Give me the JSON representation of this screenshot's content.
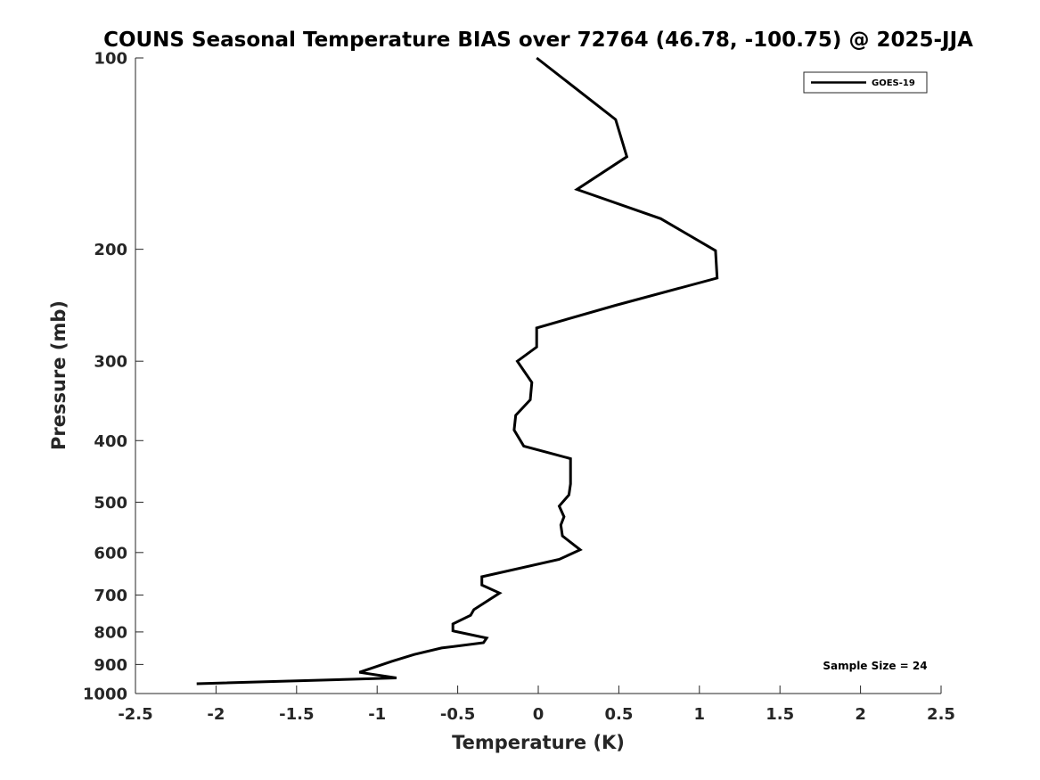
{
  "chart_data": {
    "type": "line",
    "title": "COUNS Seasonal Temperature BIAS over 72764 (46.78, -100.75) @ 2025-JJA",
    "xlabel": "Temperature (K)",
    "ylabel": "Pressure (mb)",
    "xlim": [
      -2.5,
      2.5
    ],
    "ylim": [
      100,
      1000
    ],
    "yscale": "log",
    "y_reversed": true,
    "grid": false,
    "xticks": [
      -2.5,
      -2,
      -1.5,
      -1,
      -0.5,
      0,
      0.5,
      1,
      1.5,
      2,
      2.5
    ],
    "xtick_labels": [
      "-2.5",
      "-2",
      "-1.5",
      "-1",
      "-0.5",
      "0",
      "0.5",
      "1",
      "1.5",
      "2",
      "2.5"
    ],
    "yticks": [
      100,
      200,
      300,
      400,
      500,
      600,
      700,
      800,
      900,
      1000
    ],
    "ytick_labels": [
      "100",
      "200",
      "300",
      "400",
      "500",
      "600",
      "700",
      "800",
      "900",
      "1000"
    ],
    "legend": {
      "placement": "top-right",
      "entries": [
        "GOES-19"
      ]
    },
    "annotation": "Sample Size = 24",
    "series": [
      {
        "name": "GOES-19",
        "color": "#000000",
        "points": [
          {
            "x": -0.01,
            "p": 100
          },
          {
            "x": 0.48,
            "p": 125
          },
          {
            "x": 0.55,
            "p": 143
          },
          {
            "x": 0.24,
            "p": 161
          },
          {
            "x": 0.76,
            "p": 179
          },
          {
            "x": 1.1,
            "p": 201
          },
          {
            "x": 1.11,
            "p": 222
          },
          {
            "x": 0.48,
            "p": 245
          },
          {
            "x": -0.01,
            "p": 266
          },
          {
            "x": -0.01,
            "p": 285
          },
          {
            "x": -0.13,
            "p": 300
          },
          {
            "x": -0.04,
            "p": 324
          },
          {
            "x": -0.05,
            "p": 345
          },
          {
            "x": -0.14,
            "p": 365
          },
          {
            "x": -0.15,
            "p": 385
          },
          {
            "x": -0.09,
            "p": 408
          },
          {
            "x": 0.2,
            "p": 427
          },
          {
            "x": 0.2,
            "p": 468
          },
          {
            "x": 0.19,
            "p": 487
          },
          {
            "x": 0.13,
            "p": 507
          },
          {
            "x": 0.16,
            "p": 527
          },
          {
            "x": 0.14,
            "p": 543
          },
          {
            "x": 0.15,
            "p": 565
          },
          {
            "x": 0.26,
            "p": 594
          },
          {
            "x": 0.13,
            "p": 615
          },
          {
            "x": -0.35,
            "p": 655
          },
          {
            "x": -0.35,
            "p": 675
          },
          {
            "x": -0.24,
            "p": 695
          },
          {
            "x": -0.4,
            "p": 738
          },
          {
            "x": -0.42,
            "p": 753
          },
          {
            "x": -0.53,
            "p": 777
          },
          {
            "x": -0.53,
            "p": 797
          },
          {
            "x": -0.32,
            "p": 818
          },
          {
            "x": -0.34,
            "p": 832
          },
          {
            "x": -0.6,
            "p": 848
          },
          {
            "x": -0.77,
            "p": 868
          },
          {
            "x": -0.91,
            "p": 890
          },
          {
            "x": -1.11,
            "p": 926
          },
          {
            "x": -0.88,
            "p": 945
          },
          {
            "x": -2.12,
            "p": 965
          }
        ]
      }
    ]
  }
}
